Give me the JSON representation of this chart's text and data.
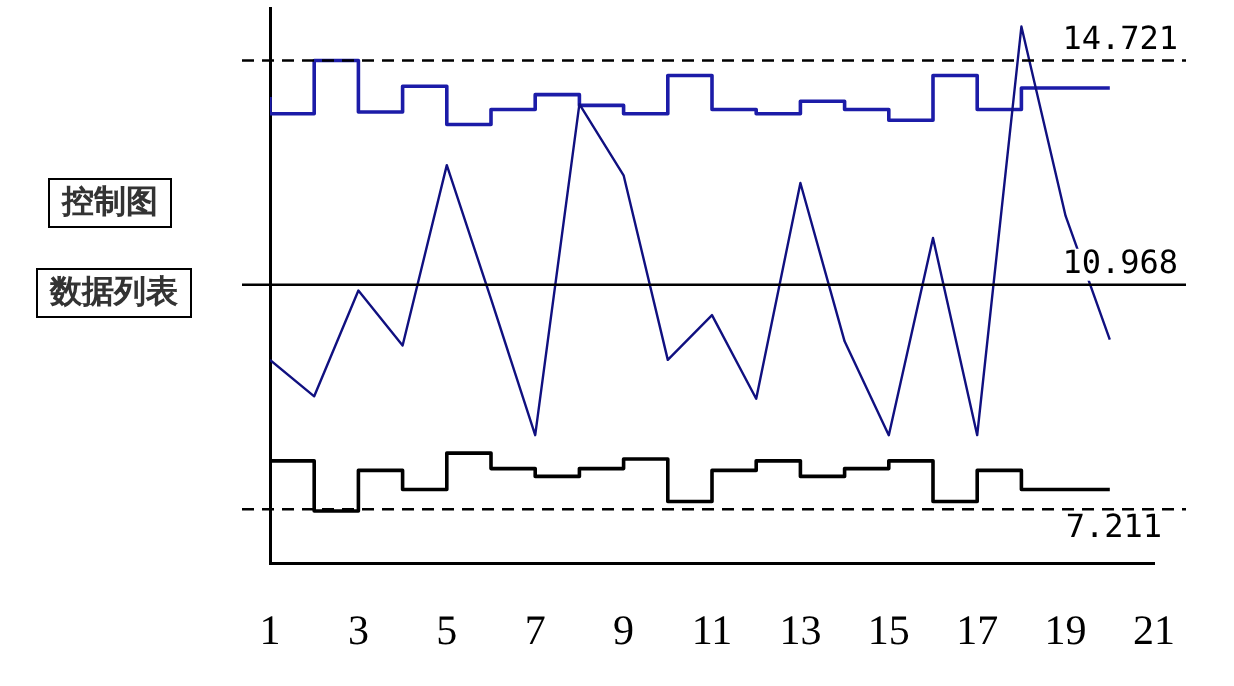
{
  "chart_data": {
    "type": "line",
    "annotations": [
      "控制图",
      "数据列表"
    ],
    "x": [
      1,
      2,
      3,
      4,
      5,
      6,
      7,
      8,
      9,
      10,
      11,
      12,
      13,
      14,
      15,
      16,
      17,
      18,
      19,
      20
    ],
    "series": [
      {
        "type": "line",
        "color": "#101080",
        "values": [
          9.71,
          9.1,
          10.87,
          9.95,
          12.97,
          10.73,
          8.45,
          13.99,
          12.8,
          9.71,
          10.46,
          9.06,
          12.67,
          10.02,
          8.45,
          11.75,
          8.45,
          15.29,
          12.12,
          10.05
        ]
      },
      {
        "type": "step",
        "color": "#1c1ca8",
        "values": [
          14.11,
          13.83,
          14.72,
          13.86,
          14.29,
          13.65,
          13.9,
          14.15,
          13.97,
          13.83,
          14.47,
          13.9,
          13.83,
          14.04,
          13.9,
          13.72,
          14.47,
          13.9,
          14.26,
          14.26
        ]
      },
      {
        "type": "step",
        "color": "#000000",
        "values": [
          7.76,
          8.02,
          7.18,
          7.86,
          7.54,
          8.15,
          7.89,
          7.76,
          7.89,
          8.05,
          7.34,
          7.86,
          8.02,
          7.76,
          7.89,
          8.02,
          7.34,
          7.86,
          7.54,
          7.54
        ]
      }
    ],
    "xlim": [
      1,
      21
    ],
    "xticks": [
      1,
      3,
      5,
      7,
      9,
      11,
      13,
      15,
      17,
      19,
      21
    ],
    "ylim": [
      6.3,
      15.6
    ],
    "tick_labels": "x",
    "ref_lines": [
      {
        "axis": "y",
        "value": 14.721,
        "label": "14.721",
        "line_style": "dashed",
        "color": "#000000"
      },
      {
        "axis": "y",
        "value": 10.968,
        "label": "10.968",
        "line_style": "solid",
        "color": "#000000"
      },
      {
        "axis": "y",
        "value": 7.211,
        "label": "7.211",
        "line_style": "dashed",
        "color": "#000000"
      }
    ],
    "grid": false,
    "legend": false,
    "marker": "none"
  }
}
